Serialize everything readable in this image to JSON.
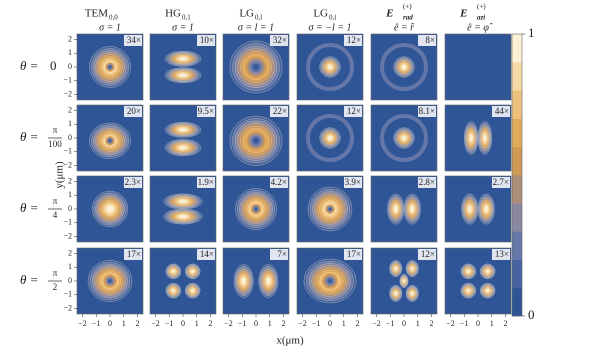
{
  "columns": [
    {
      "main": "TEM",
      "sub": "0,0",
      "line2": "σ = 1"
    },
    {
      "main": "HG",
      "sub": "0,1",
      "line2": "σ = 1"
    },
    {
      "main": "LG",
      "sub": "0,l",
      "line2": "σ = l = 1"
    },
    {
      "main": "LG",
      "sub": "0,l",
      "line2": "σ = −l = 1"
    },
    {
      "main": "E⃗",
      "sup": "(+)",
      "sub": "rad",
      "line2": "ê = r̂"
    },
    {
      "main": "E⃗",
      "sup": "(+)",
      "sub": "azi",
      "line2": "ê = φ̂"
    }
  ],
  "rows": [
    {
      "theta": "θ =",
      "value": "0"
    },
    {
      "theta": "θ =",
      "num": "π",
      "den": "100"
    },
    {
      "theta": "θ =",
      "num": "π",
      "den": "4"
    },
    {
      "theta": "θ =",
      "num": "π",
      "den": "2"
    }
  ],
  "magnifications": [
    [
      "34×",
      "10×",
      "32×",
      "12×",
      "8×",
      null
    ],
    [
      "20×",
      "9.5×",
      "22×",
      "12×",
      "8.1×",
      "44×"
    ],
    [
      "2.3×",
      "1.9×",
      "4.2×",
      "3.9×",
      "2.8×",
      "2.7×"
    ],
    [
      "17×",
      "14×",
      "7×",
      "17×",
      "12×",
      "13×"
    ]
  ],
  "x_axis": {
    "label": "x(μm)",
    "lim": [
      -2.4,
      2.4
    ],
    "ticks": [
      {
        "value": -2,
        "label": "−2"
      },
      {
        "value": -1,
        "label": "−1"
      },
      0,
      1,
      2
    ]
  },
  "y_axis": {
    "label": "y(μm)",
    "lim": [
      -2.4,
      2.4
    ],
    "ticks": [
      {
        "value": -2,
        "label": "−2"
      },
      {
        "value": -1,
        "label": "−1"
      },
      0,
      1,
      2
    ]
  },
  "colorbar": {
    "lim": [
      0,
      1
    ],
    "ticks": [
      0,
      1
    ]
  }
}
